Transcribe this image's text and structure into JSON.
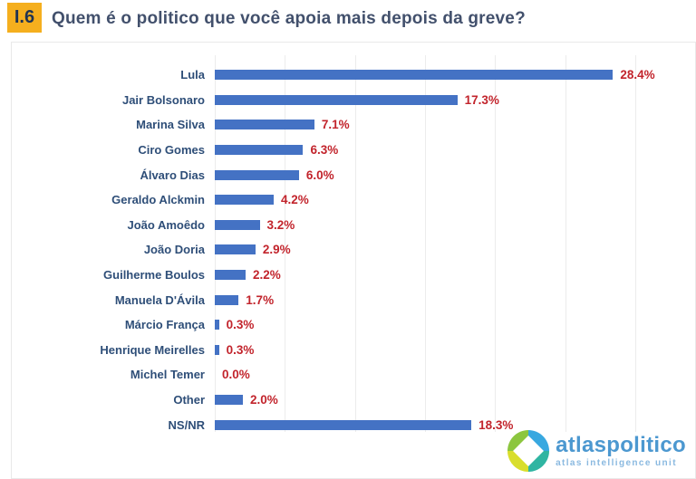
{
  "header": {
    "badge": "I.6",
    "title": "Quem é o politico que você apoia mais depois da greve?"
  },
  "chart_data": {
    "type": "bar",
    "orientation": "horizontal",
    "title": "Quem é o politico que você apoia mais depois da greve?",
    "categories": [
      "Lula",
      "Jair Bolsonaro",
      "Marina Silva",
      "Ciro Gomes",
      "Álvaro Dias",
      "Geraldo Alckmin",
      "João Amoêdo",
      "João Doria",
      "Guilherme Boulos",
      "Manuela D'Ávila",
      "Márcio França",
      "Henrique Meirelles",
      "Michel Temer",
      "Other",
      "NS/NR"
    ],
    "values": [
      28.4,
      17.3,
      7.1,
      6.3,
      6.0,
      4.2,
      3.2,
      2.9,
      2.2,
      1.7,
      0.3,
      0.3,
      0.0,
      2.0,
      18.3
    ],
    "value_labels": [
      "28.4%",
      "17.3%",
      "7.1%",
      "6.3%",
      "6.0%",
      "4.2%",
      "3.2%",
      "2.9%",
      "2.2%",
      "1.7%",
      "0.3%",
      "0.3%",
      "0.0%",
      "2.0%",
      "18.3%"
    ],
    "xlabel": "",
    "ylabel": "",
    "xlim": [
      0,
      30
    ],
    "gridline_step_pct": 5,
    "grid": true,
    "legend": false,
    "bar_color": "#4472C4",
    "value_label_color": "#C2242C",
    "category_label_color": "#2E4E78"
  },
  "footer": {
    "logo_text": "atlaspolitico",
    "logo_tagline": "atlas intelligence unit",
    "logo_colors": {
      "blue": "#38A8E0",
      "teal": "#2FB5A2",
      "yellow": "#D9DE2C",
      "green": "#8CC63F",
      "text": "#4C98D0"
    }
  }
}
